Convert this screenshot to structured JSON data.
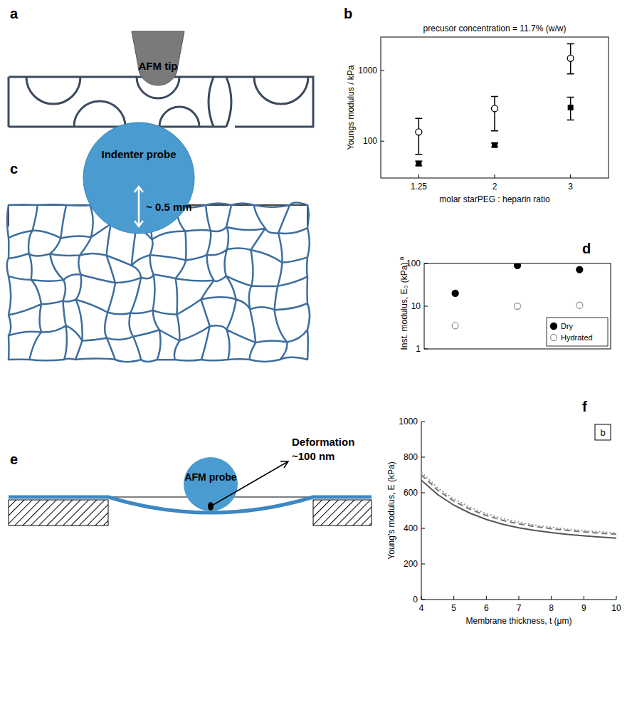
{
  "panel_labels": {
    "a": "a",
    "b": "b",
    "c": "c",
    "d": "d",
    "e": "e",
    "f": "f"
  },
  "diagrams": {
    "a": {
      "texts": [
        "AFM tip"
      ]
    },
    "c": {
      "texts": [
        "Indenter probe",
        "~ 0.5  mm"
      ]
    },
    "e": {
      "texts": [
        "AFM probe",
        "Deformation",
        "~100 nm"
      ]
    }
  },
  "chart_data": [
    {
      "type": "scatter",
      "title": "precusor concentration = 11.7% (w/w)",
      "xlabel": "molar starPEG : heparin ratio",
      "ylabel": "Youngs modulus / kPa",
      "categories": [
        "1.25",
        "2",
        "3"
      ],
      "log": "y",
      "ylim": [
        30,
        3000
      ],
      "yticks": [
        100,
        1000
      ],
      "series": [
        {
          "color": "#000000",
          "marker": "circle-open",
          "values": [
            135,
            290,
            1500
          ],
          "err_low": [
            65,
            140,
            900
          ],
          "err_high": [
            210,
            430,
            2400
          ]
        },
        {
          "color": "#000000",
          "marker": "square",
          "values": [
            48,
            88,
            300
          ],
          "err_low": [
            45,
            83,
            200
          ],
          "err_high": [
            52,
            94,
            420
          ]
        }
      ]
    },
    {
      "type": "scatter",
      "ylabel": "Inst. modulus, E₀ (kPa)",
      "annotations": [
        "a"
      ],
      "categories": [
        null,
        null,
        null
      ],
      "log": "y",
      "ylim": [
        1,
        100
      ],
      "yticks": [
        1,
        10,
        100
      ],
      "tick_labels": "y",
      "legend": "lower right",
      "series": [
        {
          "name": "Dry",
          "color": "#000000",
          "marker": "circle",
          "values": [
            20,
            90,
            72
          ]
        },
        {
          "name": "Hydrated",
          "color": "#999999",
          "marker": "circle-open",
          "values": [
            3.5,
            10,
            10.5
          ]
        }
      ]
    },
    {
      "type": "line",
      "xlabel": "Membrane thickness, t (μm)",
      "ylabel": "Young's modulus, E (kPa)",
      "annotations": [
        "b"
      ],
      "x": [
        4,
        4.5,
        5,
        5.5,
        6,
        6.5,
        7,
        7.5,
        8,
        8.5,
        9,
        9.5,
        10
      ],
      "xlim": [
        4,
        10
      ],
      "ylim": [
        0,
        1000
      ],
      "xticks": [
        4,
        5,
        6,
        7,
        8,
        9,
        10
      ],
      "yticks": [
        0,
        200,
        400,
        600,
        800,
        1000
      ],
      "series": [
        {
          "color": "#555555",
          "line_style": "solid",
          "values": [
            670,
            590,
            530,
            485,
            450,
            423,
            403,
            388,
            376,
            366,
            358,
            351,
            345
          ]
        },
        {
          "color": "#777777",
          "line_style": "dashed",
          "values": [
            700,
            615,
            553,
            507,
            472,
            445,
            425,
            410,
            398,
            388,
            380,
            373,
            367
          ]
        },
        {
          "color": "#999999",
          "line_style": "dotted",
          "values": [
            715,
            628,
            565,
            518,
            482,
            455,
            434,
            418,
            405,
            395,
            387,
            380,
            374
          ]
        }
      ]
    }
  ]
}
